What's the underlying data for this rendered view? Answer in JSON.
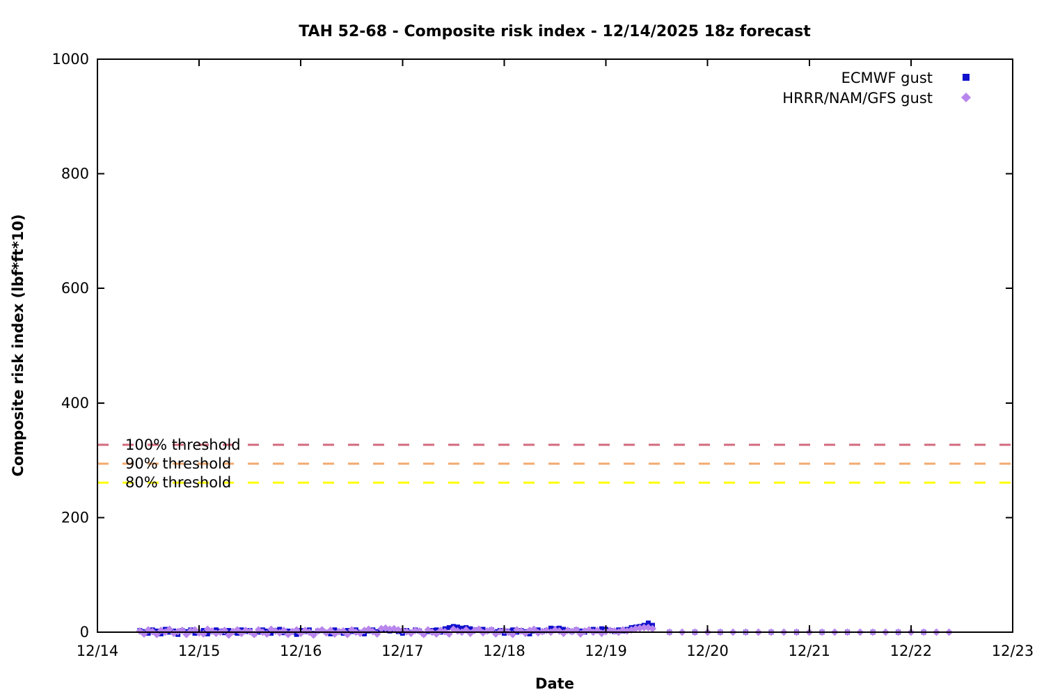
{
  "chart_data": {
    "type": "scatter",
    "title": "TAH 52-68 - Composite risk index - 12/14/2025 18z forecast",
    "xlabel": "Date",
    "ylabel": "Composite risk index (lbf*ft*10)",
    "ylim": [
      0,
      1000
    ],
    "y_ticks": [
      0,
      200,
      400,
      600,
      800,
      1000
    ],
    "x_tick_labels": [
      "12/14",
      "12/15",
      "12/16",
      "12/17",
      "12/18",
      "12/19",
      "12/20",
      "12/21",
      "12/22",
      "12/23"
    ],
    "grid": false,
    "legend_position": "top-right-inside",
    "thresholds": [
      {
        "label": "100% threshold",
        "value": 327,
        "color": "#d26a7c"
      },
      {
        "label": "90% threshold",
        "value": 294,
        "color": "#f2a96f"
      },
      {
        "label": "80% threshold",
        "value": 261,
        "color": "#ffff00"
      }
    ],
    "series": [
      {
        "name": "ECMWF gust",
        "marker": "square",
        "color": "#1010cd",
        "segments": [
          {
            "start_day": 0.4167,
            "step_days": 0.0416667,
            "values": [
              3,
              1,
              -2,
              4,
              2,
              -3,
              5,
              0,
              2,
              -4,
              3,
              1,
              4,
              -2,
              0,
              3,
              -3,
              1,
              4,
              2,
              -1,
              3,
              0,
              -2,
              4,
              1,
              3,
              -3,
              0,
              4,
              2,
              -2,
              3,
              5,
              -1,
              2,
              0,
              -4,
              3,
              1,
              4,
              -2,
              2,
              3,
              0,
              -3,
              4,
              1,
              -2,
              3,
              1,
              4,
              0,
              -3,
              2,
              4,
              1,
              3,
              5,
              2,
              4,
              1,
              -2,
              3,
              0,
              4,
              2,
              -3,
              1,
              3,
              4,
              0,
              6,
              8,
              10,
              9,
              7,
              8,
              6,
              4,
              3,
              5,
              2,
              4,
              1,
              3,
              -2,
              2,
              4,
              0,
              3,
              1,
              -3,
              2,
              4,
              1,
              3,
              7,
              6,
              7,
              5,
              3,
              1,
              4,
              2,
              0,
              3,
              5,
              2,
              6,
              5,
              3,
              1,
              4,
              2,
              5,
              8,
              9,
              10,
              12,
              16,
              12
            ]
          },
          {
            "start_day": 5.625,
            "step_days": 0.25,
            "values": [
              0,
              0,
              0,
              0,
              0,
              0,
              0,
              0,
              0,
              0,
              0
            ]
          }
        ]
      },
      {
        "name": "HRRR/NAM/GFS gust",
        "marker": "diamond",
        "color": "#b886ec",
        "segments": [
          {
            "start_day": 0.4167,
            "step_days": 0.0416667,
            "values": [
              2,
              -3,
              4,
              1,
              -4,
              3,
              0,
              5,
              -2,
              1,
              3,
              -4,
              2,
              4,
              -1,
              -3,
              5,
              2,
              -2,
              0,
              3,
              -5,
              1,
              4,
              -2,
              3,
              1,
              -4,
              4,
              0,
              -3,
              5,
              2,
              -1,
              3,
              -4,
              1,
              4,
              -2,
              3,
              0,
              -5,
              2,
              4,
              -1,
              3,
              -3,
              1,
              2,
              -4,
              4,
              0,
              -2,
              3,
              5,
              1,
              -3,
              6,
              7,
              5,
              6,
              4,
              3,
              1,
              -2,
              3,
              2,
              -4,
              4,
              0,
              -3,
              3,
              1,
              -3,
              5,
              2,
              0,
              4,
              -2,
              3,
              5,
              -1,
              2,
              4,
              -3,
              1,
              3,
              0,
              -4,
              4,
              2,
              -2,
              3,
              5,
              -1,
              1,
              3,
              0,
              4,
              2,
              -2,
              3,
              1,
              4,
              -3,
              2,
              4,
              0,
              3,
              -2,
              1,
              3,
              2,
              0,
              4,
              2,
              4,
              6,
              7,
              8,
              8,
              6
            ]
          },
          {
            "start_day": 5.625,
            "step_days": 0.125,
            "values": [
              0,
              0,
              0,
              0,
              0,
              0,
              0,
              0,
              0,
              0,
              0,
              0,
              0,
              0,
              0,
              0,
              0,
              0,
              0,
              0,
              0,
              0,
              0
            ]
          }
        ]
      }
    ]
  }
}
